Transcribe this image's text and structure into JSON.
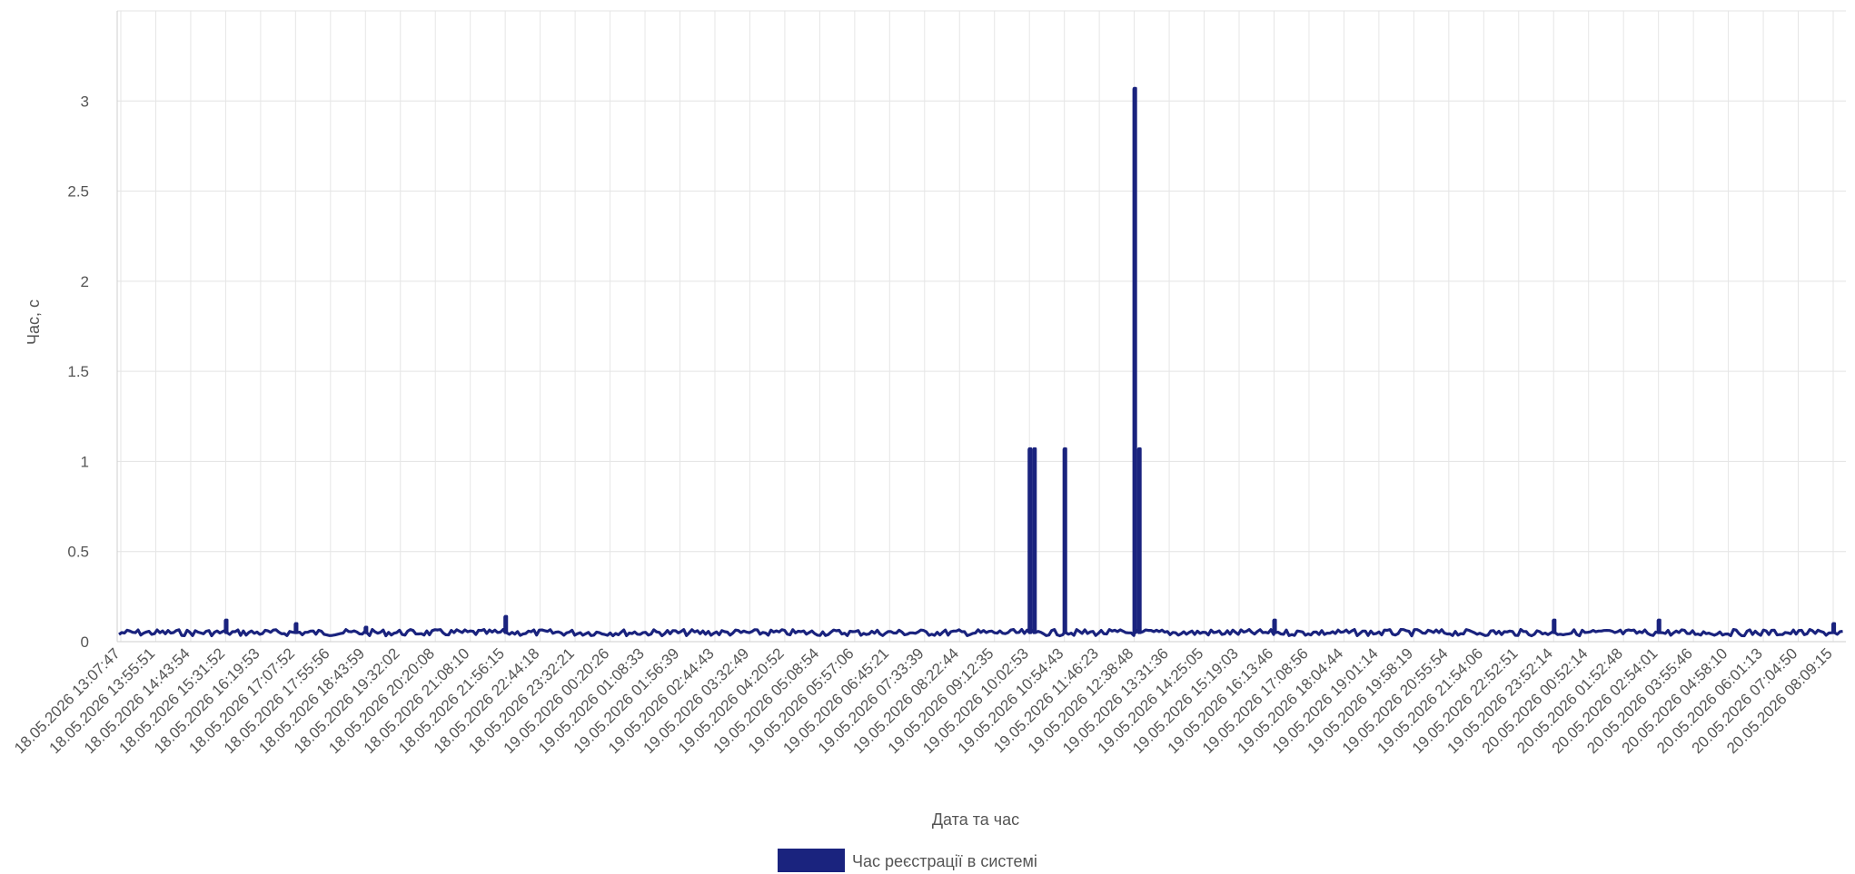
{
  "chart_data": {
    "type": "line",
    "title": "",
    "xlabel": "Дата та час",
    "ylabel": "Час, с",
    "ylim": [
      0,
      3.5
    ],
    "yticks": [
      0,
      0.5,
      1,
      1.5,
      2,
      2.5,
      3
    ],
    "ytick_labels": [
      "0",
      "0.5",
      "1",
      "1.5",
      "2",
      "2.5",
      "3"
    ],
    "grid": true,
    "legend_position": "bottom-center",
    "series_color": "#1a237e",
    "categories": [
      "18.05.2026 13:07:47",
      "18.05.2026 13:55:51",
      "18.05.2026 14:43:54",
      "18.05.2026 15:31:52",
      "18.05.2026 16:19:53",
      "18.05.2026 17:07:52",
      "18.05.2026 17:55:56",
      "18.05.2026 18:43:59",
      "18.05.2026 19:32:02",
      "18.05.2026 20:20:08",
      "18.05.2026 21:08:10",
      "18.05.2026 21:56:15",
      "18.05.2026 22:44:18",
      "18.05.2026 23:32:21",
      "19.05.2026 00:20:26",
      "19.05.2026 01:08:33",
      "19.05.2026 01:56:39",
      "19.05.2026 02:44:43",
      "19.05.2026 03:32:49",
      "19.05.2026 04:20:52",
      "19.05.2026 05:08:54",
      "19.05.2026 05:57:06",
      "19.05.2026 06:45:21",
      "19.05.2026 07:33:39",
      "19.05.2026 08:22:44",
      "19.05.2026 09:12:35",
      "19.05.2026 10:02:53",
      "19.05.2026 10:54:43",
      "19.05.2026 11:46:23",
      "19.05.2026 12:38:48",
      "19.05.2026 13:31:36",
      "19.05.2026 14:25:05",
      "19.05.2026 15:19:03",
      "19.05.2026 16:13:46",
      "19.05.2026 17:08:56",
      "19.05.2026 18:04:44",
      "19.05.2026 19:01:14",
      "19.05.2026 19:58:19",
      "19.05.2026 20:55:54",
      "19.05.2026 21:54:06",
      "19.05.2026 22:52:51",
      "19.05.2026 23:52:14",
      "20.05.2026 00:52:14",
      "20.05.2026 01:52:48",
      "20.05.2026 02:54:01",
      "20.05.2026 03:55:46",
      "20.05.2026 04:58:10",
      "20.05.2026 06:01:13",
      "20.05.2026 07:04:50",
      "20.05.2026 08:09:15"
    ],
    "series": [
      {
        "name": "Час реєстрації в системі",
        "spikes": [
          {
            "x": "18.05.2026 15:31:52",
            "y": 0.12
          },
          {
            "x": "18.05.2026 17:07:52",
            "y": 0.1
          },
          {
            "x": "18.05.2026 18:43:59",
            "y": 0.08
          },
          {
            "x": "18.05.2026 21:56:15",
            "y": 0.14
          },
          {
            "x": "19.05.2026 10:02:53",
            "y": 1.07
          },
          {
            "x": "19.05.2026 10:02:53",
            "y": 1.07
          },
          {
            "x": "19.05.2026 10:54:43",
            "y": 1.07
          },
          {
            "x": "19.05.2026 12:38:48",
            "y": 3.07
          },
          {
            "x": "19.05.2026 12:38:48",
            "y": 1.07
          },
          {
            "x": "19.05.2026 16:13:46",
            "y": 0.12
          },
          {
            "x": "19.05.2026 23:52:14",
            "y": 0.12
          },
          {
            "x": "20.05.2026 02:54:01",
            "y": 0.12
          },
          {
            "x": "20.05.2026 08:09:15",
            "y": 0.1
          }
        ],
        "baseline": 0.05
      }
    ]
  }
}
